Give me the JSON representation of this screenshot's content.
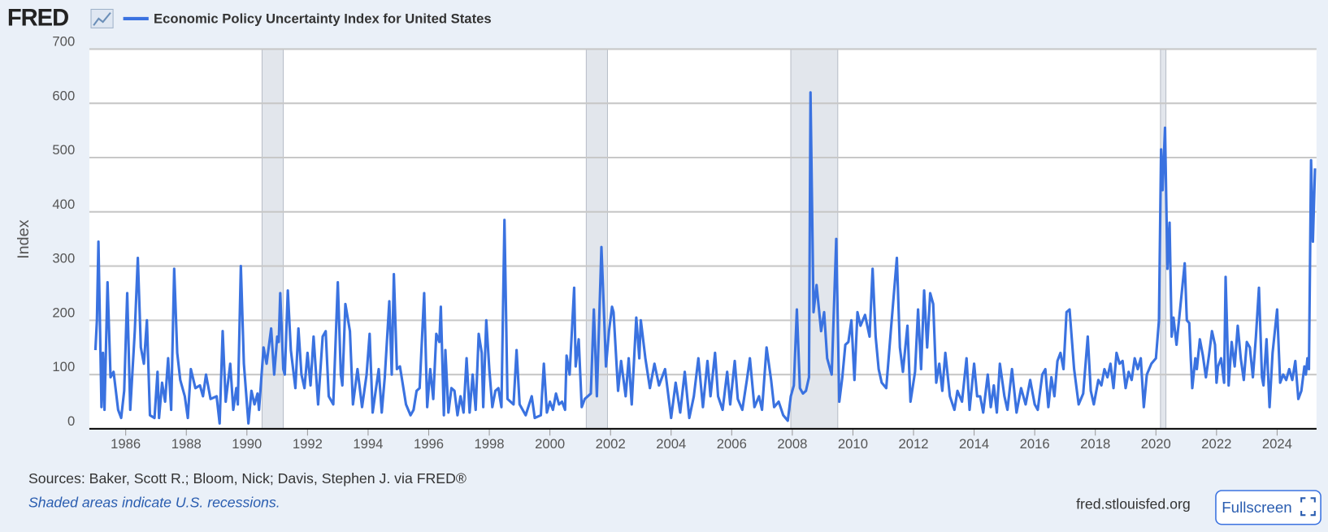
{
  "chart_data": {
    "type": "line",
    "logo": "FRED",
    "ylabel": "Index",
    "source": "Sources: Baker, Scott R.; Bloom, Nick; Davis, Stephen J. via FRED®",
    "note": "Shaded areas indicate U.S. recessions.",
    "site": "fred.stlouisfed.org",
    "button": "Fullscreen",
    "xlim": [
      1984.8,
      2025.3
    ],
    "xticks": [
      1986,
      1988,
      1990,
      1992,
      1994,
      1996,
      1998,
      2000,
      2002,
      2004,
      2006,
      2008,
      2010,
      2012,
      2014,
      2016,
      2018,
      2020,
      2022,
      2024
    ],
    "ylim": [
      0,
      700
    ],
    "yticks": [
      0,
      100,
      200,
      300,
      400,
      500,
      600,
      700
    ],
    "grid": true,
    "recessions": [
      [
        1990.5,
        1991.2
      ],
      [
        2001.2,
        2001.9
      ],
      [
        2007.95,
        2009.5
      ],
      [
        2020.15,
        2020.33
      ]
    ],
    "x": [
      1985.0,
      1985.05,
      1985.1,
      1985.2,
      1985.25,
      1985.3,
      1985.4,
      1985.5,
      1985.6,
      1985.75,
      1985.85,
      1985.95,
      1986.05,
      1986.15,
      1986.3,
      1986.4,
      1986.5,
      1986.6,
      1986.7,
      1986.8,
      1986.95,
      1987.05,
      1987.1,
      1987.2,
      1987.3,
      1987.4,
      1987.5,
      1987.6,
      1987.7,
      1987.8,
      1987.95,
      1988.05,
      1988.15,
      1988.3,
      1988.45,
      1988.55,
      1988.65,
      1988.8,
      1989.0,
      1989.1,
      1989.2,
      1989.3,
      1989.45,
      1989.55,
      1989.65,
      1989.7,
      1989.8,
      1989.9,
      1990.05,
      1990.15,
      1990.25,
      1990.35,
      1990.4,
      1990.55,
      1990.65,
      1990.8,
      1990.9,
      1991.0,
      1991.05,
      1991.1,
      1991.2,
      1991.25,
      1991.35,
      1991.45,
      1991.6,
      1991.7,
      1991.8,
      1991.9,
      1992.0,
      1992.1,
      1992.2,
      1992.35,
      1992.5,
      1992.6,
      1992.7,
      1992.85,
      1993.0,
      1993.1,
      1993.15,
      1993.25,
      1993.4,
      1993.5,
      1993.65,
      1993.8,
      1993.95,
      1994.05,
      1994.15,
      1994.35,
      1994.45,
      1994.55,
      1994.7,
      1994.78,
      1994.85,
      1994.95,
      1995.05,
      1995.25,
      1995.4,
      1995.5,
      1995.6,
      1995.7,
      1995.85,
      1995.95,
      1996.05,
      1996.15,
      1996.25,
      1996.35,
      1996.4,
      1996.5,
      1996.55,
      1996.65,
      1996.75,
      1996.85,
      1996.95,
      1997.05,
      1997.15,
      1997.25,
      1997.35,
      1997.45,
      1997.55,
      1997.65,
      1997.75,
      1997.8,
      1997.9,
      1998.0,
      1998.1,
      1998.2,
      1998.3,
      1998.4,
      1998.5,
      1998.6,
      1998.8,
      1998.9,
      1999.0,
      1999.2,
      1999.4,
      1999.5,
      1999.7,
      1999.8,
      1999.9,
      2000.0,
      2000.1,
      2000.2,
      2000.3,
      2000.4,
      2000.5,
      2000.55,
      2000.65,
      2000.8,
      2000.85,
      2000.95,
      2001.05,
      2001.15,
      2001.35,
      2001.45,
      2001.55,
      2001.7,
      2001.8,
      2001.85,
      2001.95,
      2002.05,
      2002.1,
      2002.25,
      2002.35,
      2002.5,
      2002.6,
      2002.7,
      2002.85,
      2002.95,
      2003.0,
      2003.15,
      2003.3,
      2003.45,
      2003.6,
      2003.8,
      2003.9,
      2004.0,
      2004.15,
      2004.3,
      2004.45,
      2004.6,
      2004.75,
      2004.9,
      2005.05,
      2005.2,
      2005.3,
      2005.45,
      2005.55,
      2005.7,
      2005.85,
      2005.95,
      2006.1,
      2006.2,
      2006.35,
      2006.5,
      2006.6,
      2006.75,
      2006.9,
      2007.0,
      2007.15,
      2007.3,
      2007.4,
      2007.55,
      2007.7,
      2007.85,
      2007.95,
      2008.05,
      2008.15,
      2008.25,
      2008.35,
      2008.45,
      2008.55,
      2008.6,
      2008.7,
      2008.8,
      2008.95,
      2009.05,
      2009.15,
      2009.3,
      2009.45,
      2009.55,
      2009.65,
      2009.75,
      2009.85,
      2009.95,
      2010.05,
      2010.15,
      2010.25,
      2010.4,
      2010.55,
      2010.65,
      2010.75,
      2010.85,
      2010.95,
      2011.1,
      2011.25,
      2011.45,
      2011.55,
      2011.65,
      2011.8,
      2011.9,
      2012.05,
      2012.15,
      2012.25,
      2012.35,
      2012.45,
      2012.55,
      2012.65,
      2012.75,
      2012.85,
      2012.95,
      2013.05,
      2013.2,
      2013.35,
      2013.45,
      2013.6,
      2013.75,
      2013.85,
      2014.0,
      2014.1,
      2014.2,
      2014.3,
      2014.45,
      2014.55,
      2014.65,
      2014.75,
      2014.85,
      2015.0,
      2015.1,
      2015.25,
      2015.4,
      2015.55,
      2015.7,
      2015.85,
      2016.0,
      2016.1,
      2016.25,
      2016.35,
      2016.45,
      2016.55,
      2016.65,
      2016.75,
      2016.85,
      2016.95,
      2017.05,
      2017.15,
      2017.3,
      2017.45,
      2017.6,
      2017.75,
      2017.85,
      2017.95,
      2018.1,
      2018.2,
      2018.3,
      2018.4,
      2018.5,
      2018.6,
      2018.7,
      2018.8,
      2018.9,
      2019.0,
      2019.1,
      2019.2,
      2019.3,
      2019.4,
      2019.5,
      2019.6,
      2019.7,
      2019.85,
      2020.0,
      2020.1,
      2020.17,
      2020.22,
      2020.3,
      2020.38,
      2020.45,
      2020.52,
      2020.58,
      2020.68,
      2020.95,
      2021.02,
      2021.1,
      2021.15,
      2021.2,
      2021.3,
      2021.35,
      2021.45,
      2021.55,
      2021.65,
      2021.75,
      2021.85,
      2021.95,
      2022.0,
      2022.05,
      2022.15,
      2022.25,
      2022.3,
      2022.4,
      2022.5,
      2022.6,
      2022.7,
      2022.8,
      2022.9,
      2023.0,
      2023.1,
      2023.2,
      2023.3,
      2023.4,
      2023.5,
      2023.55,
      2023.65,
      2023.75,
      2023.85,
      2024.0,
      2024.1,
      2024.2,
      2024.3,
      2024.4,
      2024.5,
      2024.6,
      2024.7,
      2024.8,
      2024.9,
      2024.95,
      2025.0,
      2025.05,
      2025.12,
      2025.18,
      2025.25
    ],
    "series": [
      {
        "name": "Economic Policy Uncertainty Index for United States",
        "color": "#3a72e0",
        "values": [
          145,
          200,
          345,
          40,
          140,
          35,
          270,
          95,
          105,
          35,
          20,
          70,
          250,
          35,
          180,
          315,
          150,
          120,
          200,
          25,
          20,
          105,
          20,
          85,
          50,
          130,
          35,
          295,
          140,
          90,
          60,
          20,
          110,
          75,
          80,
          60,
          100,
          55,
          60,
          10,
          180,
          50,
          120,
          35,
          75,
          45,
          300,
          120,
          10,
          70,
          45,
          65,
          35,
          150,
          120,
          185,
          100,
          170,
          160,
          250,
          110,
          100,
          255,
          145,
          75,
          185,
          100,
          75,
          140,
          80,
          170,
          45,
          170,
          180,
          60,
          45,
          270,
          100,
          80,
          230,
          180,
          45,
          110,
          40,
          100,
          175,
          30,
          110,
          30,
          95,
          235,
          100,
          285,
          110,
          115,
          45,
          25,
          35,
          70,
          75,
          250,
          40,
          110,
          55,
          175,
          160,
          225,
          25,
          145,
          30,
          75,
          70,
          25,
          60,
          30,
          130,
          30,
          100,
          35,
          175,
          140,
          40,
          200,
          110,
          40,
          70,
          75,
          40,
          385,
          55,
          45,
          145,
          45,
          25,
          60,
          20,
          25,
          120,
          30,
          50,
          35,
          65,
          45,
          50,
          35,
          135,
          100,
          260,
          115,
          165,
          40,
          55,
          65,
          220,
          60,
          335,
          190,
          115,
          180,
          225,
          215,
          70,
          125,
          60,
          130,
          45,
          205,
          130,
          200,
          130,
          75,
          120,
          80,
          110,
          65,
          20,
          85,
          30,
          105,
          20,
          60,
          130,
          40,
          125,
          60,
          140,
          60,
          35,
          105,
          45,
          125,
          55,
          35,
          90,
          130,
          40,
          60,
          35,
          150,
          90,
          40,
          50,
          25,
          15,
          60,
          80,
          220,
          75,
          65,
          70,
          95,
          620,
          215,
          265,
          180,
          215,
          130,
          100,
          350,
          50,
          95,
          155,
          160,
          200,
          90,
          215,
          190,
          210,
          170,
          295,
          170,
          110,
          85,
          75,
          180,
          315,
          150,
          105,
          190,
          50,
          105,
          220,
          110,
          255,
          150,
          250,
          230,
          85,
          120,
          70,
          140,
          60,
          35,
          70,
          50,
          130,
          35,
          120,
          60,
          60,
          30,
          100,
          40,
          80,
          30,
          120,
          60,
          35,
          110,
          30,
          75,
          45,
          90,
          45,
          35,
          100,
          110,
          40,
          95,
          60,
          125,
          140,
          110,
          215,
          220,
          110,
          45,
          65,
          170,
          70,
          45,
          90,
          80,
          110,
          95,
          120,
          75,
          140,
          120,
          125,
          75,
          105,
          90,
          130,
          110,
          130,
          40,
          100,
          120,
          130,
          200,
          515,
          440,
          555,
          295,
          380,
          170,
          205,
          155,
          305,
          200,
          195,
          130,
          75,
          130,
          110,
          165,
          135,
          95,
          135,
          180,
          155,
          85,
          115,
          130,
          85,
          280,
          80,
          160,
          115,
          190,
          130,
          90,
          160,
          150,
          95,
          170,
          260,
          95,
          80,
          165,
          40,
          140,
          220,
          85,
          100,
          90,
          110,
          90,
          125,
          55,
          70,
          115,
          100,
          130,
          110,
          495,
          345,
          480
        ]
      }
    ]
  }
}
